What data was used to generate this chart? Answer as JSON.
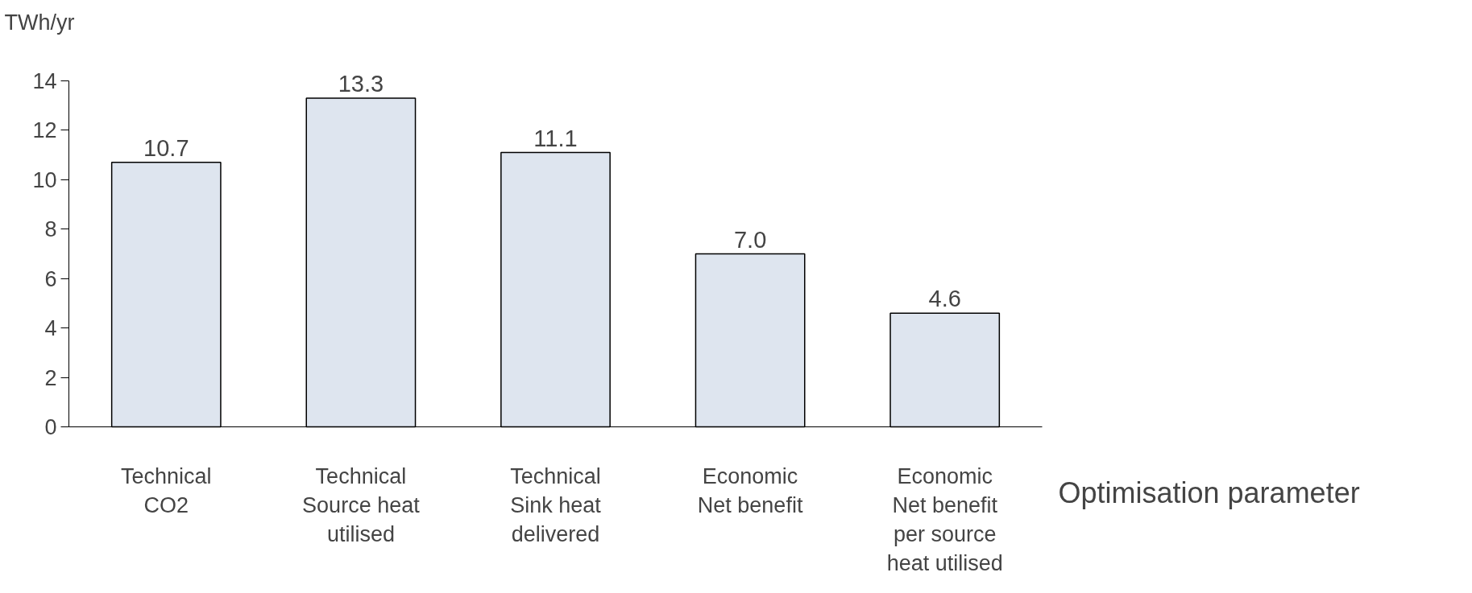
{
  "chart_data": {
    "type": "bar",
    "xlabel": "Optimisation parameter",
    "ylabel": "TWh/yr",
    "categories": [
      "Technical\nCO2",
      "Technical\nSource heat\nutilised",
      "Technical\nSink heat\ndelivered",
      "Economic\nNet benefit",
      "Economic\nNet benefit\nper source\nheat utilised"
    ],
    "values": [
      10.7,
      13.3,
      11.1,
      7.0,
      4.6
    ],
    "value_labels": [
      "10.7",
      "13.3",
      "11.1",
      "7.0",
      "4.6"
    ],
    "color": "#dee5ef",
    "ylim": [
      0,
      14
    ],
    "yticks": [
      0,
      2,
      4,
      6,
      8,
      10,
      12,
      14
    ],
    "grid": false,
    "legend": false
  }
}
